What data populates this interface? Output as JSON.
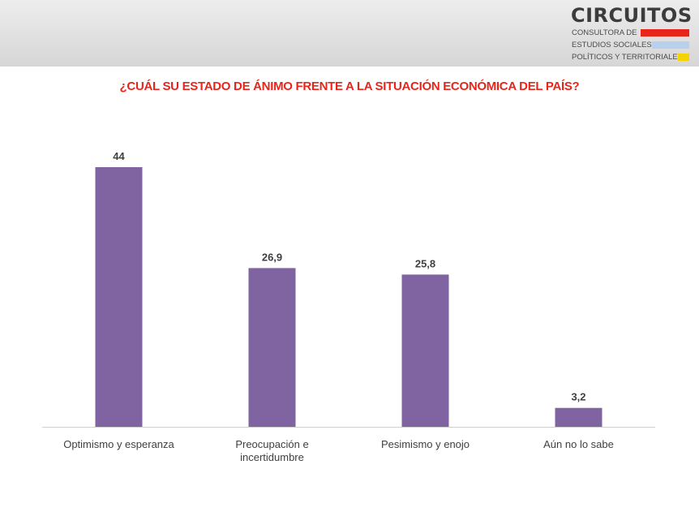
{
  "header": {
    "logo": {
      "name": "CIRCUITOS",
      "lines": [
        "CONSULTORA DE",
        "ESTUDIOS SOCIALES,",
        "POLÍTICOS Y TERRITORIALES"
      ],
      "bar_colors": [
        "#e8251b",
        "#b8d0ee",
        "#f4d400"
      ]
    }
  },
  "chart_data": {
    "type": "bar",
    "title": "¿CUÁL SU ESTADO DE ÁNIMO FRENTE A LA SITUACIÓN ECONÓMICA DEL PAÍS?",
    "categories": [
      [
        "Optimismo y esperanza"
      ],
      [
        "Preocupación e",
        "incertidumbre"
      ],
      [
        "Pesimismo y enojo"
      ],
      [
        "Aún no lo sabe"
      ]
    ],
    "values": [
      44,
      26.9,
      25.8,
      3.2
    ],
    "value_labels": [
      "44",
      "26,9",
      "25,8",
      "3,2"
    ],
    "ylim": [
      0,
      44
    ],
    "grid": false,
    "bar_color": "#8064a2",
    "title_color": "#e8251b"
  }
}
